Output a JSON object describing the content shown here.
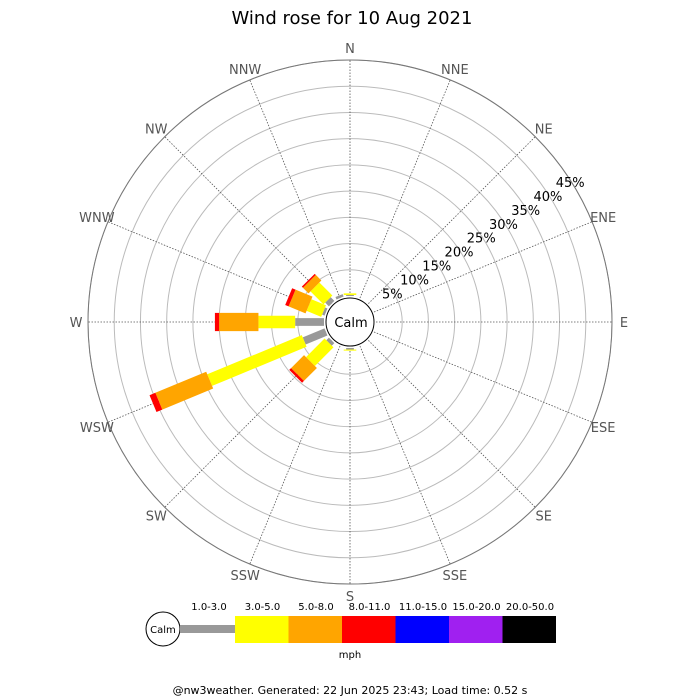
{
  "chart_data": {
    "type": "wind-rose",
    "title": "Wind rose for 10 Aug 2021",
    "directions": [
      "N",
      "NNE",
      "NE",
      "ENE",
      "E",
      "ESE",
      "SE",
      "SSE",
      "S",
      "SSW",
      "SW",
      "WSW",
      "W",
      "WNW",
      "NW",
      "NNW"
    ],
    "radial_ticks": [
      "5%",
      "10%",
      "15%",
      "20%",
      "25%",
      "30%",
      "35%",
      "40%",
      "45%"
    ],
    "radial_max": 45,
    "center_label": "Calm",
    "speed_bins": [
      {
        "label": "1.0-3.0",
        "color": "#999999"
      },
      {
        "label": "3.0-5.0",
        "color": "#ffff00"
      },
      {
        "label": "5.0-8.0",
        "color": "#ffa500"
      },
      {
        "label": "8.0-11.0",
        "color": "#ff0000"
      },
      {
        "label": "11.0-15.0",
        "color": "#0000ff"
      },
      {
        "label": "15.0-20.0",
        "color": "#a020f0"
      },
      {
        "label": "20.0-50.0",
        "color": "#000000"
      }
    ],
    "unit": "mph",
    "series": [
      {
        "direction": "N",
        "values": [
          0.2,
          0.3,
          0,
          0,
          0,
          0,
          0
        ]
      },
      {
        "direction": "NNW",
        "values": [
          0.5,
          0,
          0,
          0,
          0,
          0,
          0
        ]
      },
      {
        "direction": "NW",
        "values": [
          1.0,
          3.5,
          1.5,
          0.3,
          0,
          0,
          0
        ]
      },
      {
        "direction": "WNW",
        "values": [
          0.5,
          3.0,
          3.5,
          0.7,
          0,
          0,
          0
        ]
      },
      {
        "direction": "W",
        "values": [
          5.5,
          7.0,
          7.5,
          0.8,
          0,
          0,
          0
        ]
      },
      {
        "direction": "WSW",
        "values": [
          4.5,
          19.5,
          10.5,
          1.2,
          0,
          0,
          0
        ]
      },
      {
        "direction": "SW",
        "values": [
          0.7,
          5.0,
          3.5,
          0.5,
          0,
          0,
          0
        ]
      },
      {
        "direction": "S",
        "values": [
          0.3,
          0.2,
          0,
          0,
          0,
          0,
          0
        ]
      }
    ]
  },
  "calm_legend_label": "Calm",
  "footer": "@nw3weather. Generated: 22 Jun 2025 23:43; Load time: 0.52 s"
}
